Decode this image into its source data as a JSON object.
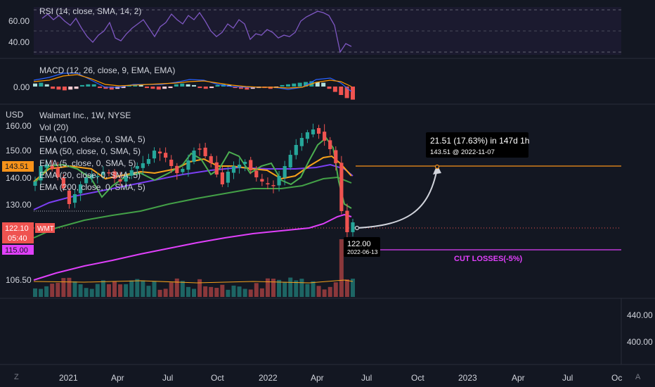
{
  "rsi": {
    "legend": "RSI (14, close, SMA, 14, 2)",
    "ticks": [
      "60.00",
      "40.00"
    ]
  },
  "macd": {
    "legend": "MACD (12, 26, close, 9, EMA, EMA)",
    "ticks": [
      "0.00"
    ]
  },
  "main": {
    "currency": "USD",
    "title": "Walmart Inc., 1W, NYSE",
    "indicators": [
      "Vol (20)",
      "EMA (100, close, 0, SMA, 5)",
      "EMA (50, close, 0, SMA, 5)",
      "EMA (5, close, 0, SMA, 5)",
      "EMA (20, close, 0, SMA, 5)",
      "EMA (200, close, 0, SMA, 5)"
    ],
    "price_ticks": [
      "160.00",
      "150.00",
      "140.00",
      "130.00",
      "106.50"
    ],
    "price_tag_143": "143.51",
    "last_price": "122.10",
    "countdown": "05:40",
    "symbol_tag": "WMT",
    "stop_tag": "115.00",
    "stop_label": "CUT LOSSES(-5%)",
    "measure_label": "21.51 (17.63%) in 147d 1h",
    "measure_sub": "143.51 @ 2022-11-07",
    "entry_price": "122.00",
    "entry_date": "2022-06-13"
  },
  "lower": {
    "ticks": [
      "440.00",
      "400.00"
    ]
  },
  "time_axis": {
    "labels": [
      "2021",
      "Apr",
      "Jul",
      "Oct",
      "2022",
      "Apr",
      "Jul",
      "Oct",
      "2023",
      "Apr",
      "Jul",
      "Oc"
    ]
  },
  "corners": {
    "left": "Z",
    "right": "A"
  },
  "colors": {
    "background": "#131722",
    "up": "#26a69a",
    "down": "#ef5350",
    "ema5": "#4caf50",
    "ema20": "#f7a21b",
    "ema50": "#7b3ff2",
    "ema100": "#43a047",
    "ema200": "#e040fb",
    "target": "#f7931a",
    "stop": "#e040fb"
  }
}
